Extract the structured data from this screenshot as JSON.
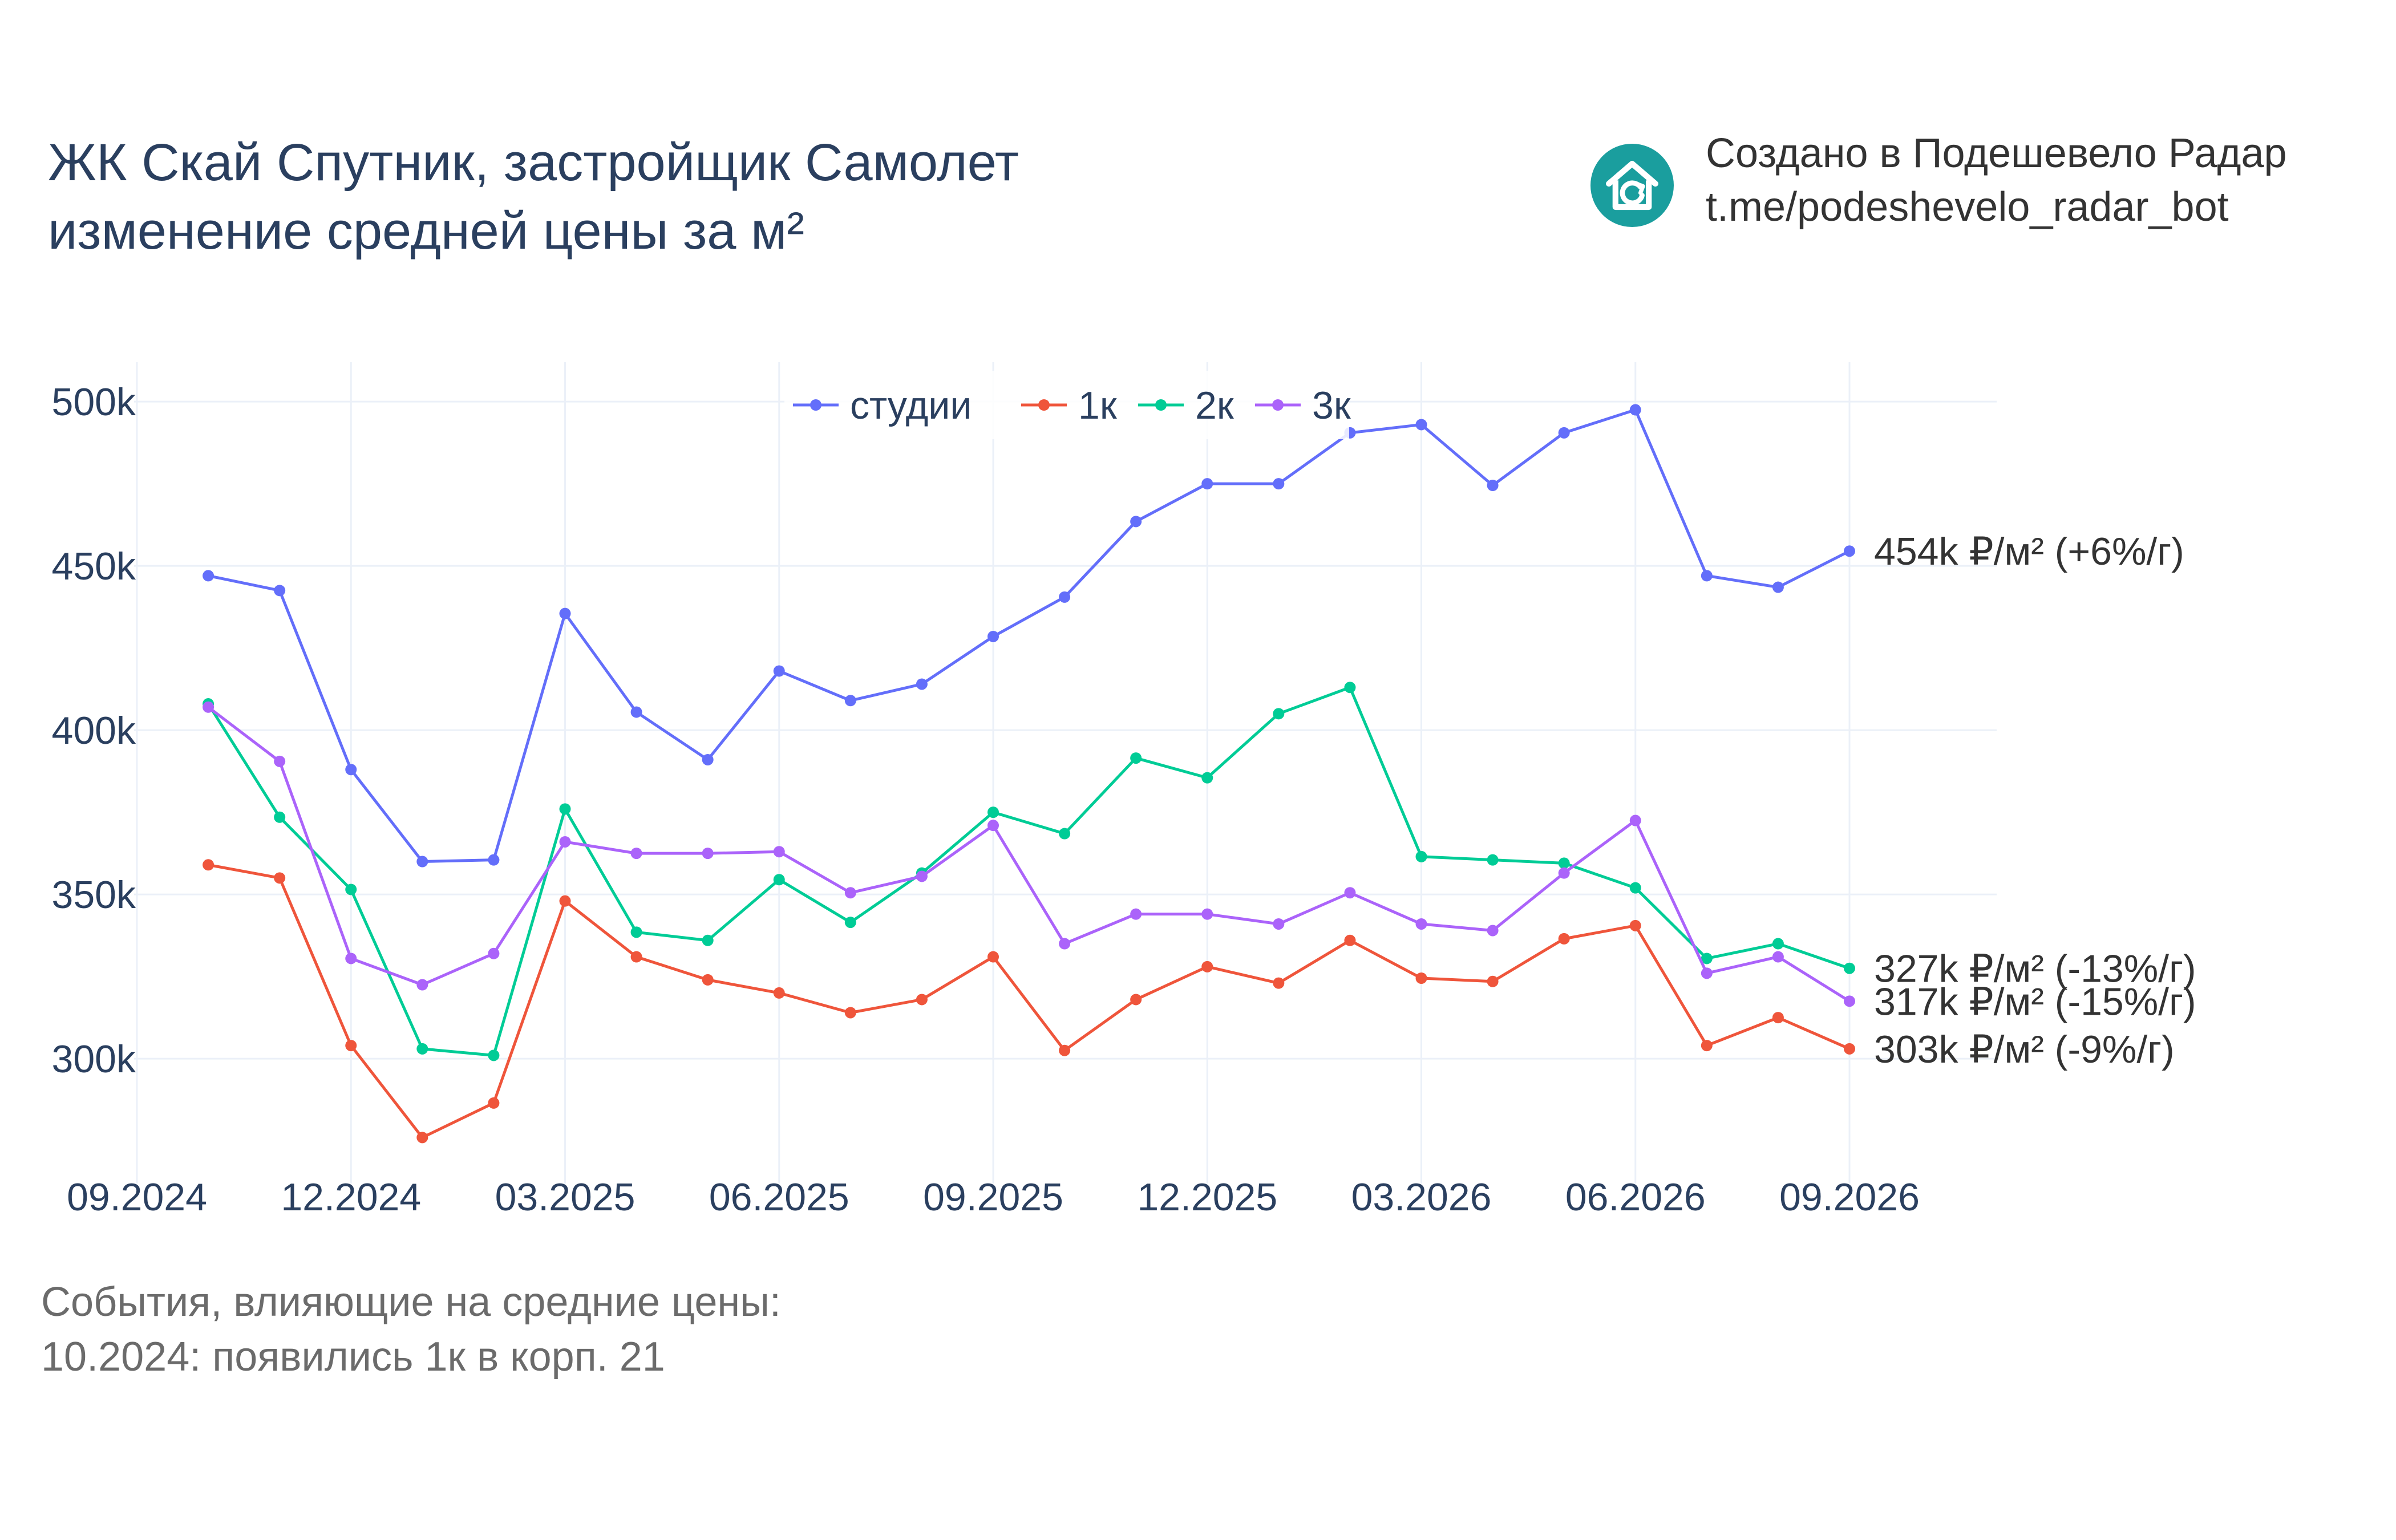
{
  "header": {
    "title_line1": "ЖК Скай Спутник, застройщик Самолет",
    "title_line2": "изменение средней цены за м²"
  },
  "branding": {
    "line1": "Создано в Подешевело Радар",
    "line2": "t.me/podeshevelo_radar_bot",
    "logo_icon": "house-refresh-icon",
    "logo_color": "#1a9e9e"
  },
  "events": {
    "heading": "События, влияющие на средние цены:",
    "items": [
      "10.2024: появились 1к в корп. 21"
    ]
  },
  "chart_data": {
    "type": "line",
    "x": [
      "10.2024",
      "11.2024",
      "12.2024",
      "01.2025",
      "02.2025",
      "03.2025",
      "04.2025",
      "05.2025",
      "06.2025",
      "07.2025",
      "08.2025",
      "09.2025",
      "10.2025",
      "11.2025",
      "12.2025",
      "01.2026",
      "02.2026",
      "03.2026",
      "04.2026",
      "05.2026",
      "06.2026",
      "07.2026",
      "08.2026",
      "09.2026"
    ],
    "x_ticks": [
      "09.2024",
      "12.2024",
      "03.2025",
      "06.2025",
      "09.2025",
      "12.2025",
      "03.2026",
      "06.2026",
      "09.2026"
    ],
    "y_ticks": [
      "300k",
      "350k",
      "400k",
      "450k",
      "500k"
    ],
    "ylim": [
      262000,
      512000
    ],
    "grid": true,
    "legend_position": "top-center",
    "series": [
      {
        "name": "студии",
        "color": "#636efa",
        "values": [
          447000,
          442500,
          388000,
          360000,
          360500,
          435500,
          405500,
          391000,
          418000,
          409000,
          414000,
          428500,
          440500,
          463500,
          475000,
          475000,
          490500,
          493000,
          474500,
          490500,
          497500,
          447000,
          443500,
          454500
        ],
        "end_label": "454k ₽/м² (+6%/г)"
      },
      {
        "name": "1к",
        "color": "#ef553b",
        "values": [
          359000,
          355000,
          304000,
          276000,
          286500,
          348000,
          331000,
          324000,
          320000,
          314000,
          318000,
          331000,
          302500,
          318000,
          328000,
          323000,
          336000,
          324500,
          323500,
          336500,
          340500,
          304000,
          312500,
          303000
        ],
        "end_label": "303k ₽/м² (-9%/г)"
      },
      {
        "name": "2к",
        "color": "#00cc96",
        "values": [
          408000,
          373500,
          351500,
          303000,
          301000,
          376000,
          338500,
          336000,
          354500,
          341500,
          356500,
          375000,
          368500,
          391500,
          385500,
          405000,
          413000,
          361500,
          360500,
          359500,
          352000,
          330500,
          335000,
          327500
        ],
        "end_label": "327k ₽/м² (-13%/г)"
      },
      {
        "name": "3к",
        "color": "#ab63fa",
        "values": [
          407000,
          390500,
          330500,
          322500,
          332000,
          366000,
          362500,
          362500,
          363000,
          350500,
          355500,
          371000,
          335000,
          344000,
          344000,
          341000,
          350500,
          341000,
          339000,
          356500,
          372500,
          326000,
          331000,
          317500
        ],
        "end_label": "317k ₽/м² (-15%/г)"
      }
    ]
  }
}
